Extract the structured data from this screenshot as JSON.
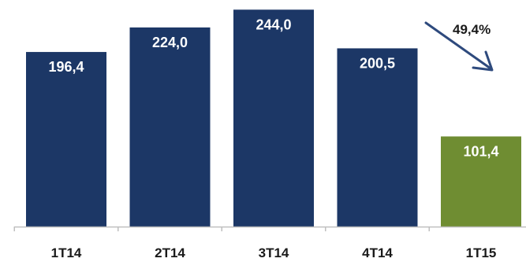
{
  "chart_data": {
    "type": "bar",
    "categories": [
      "1T14",
      "2T14",
      "3T14",
      "4T14",
      "1T15"
    ],
    "values": [
      196.4,
      224.0,
      244.0,
      200.5,
      101.4
    ],
    "value_labels": [
      "196,4",
      "224,0",
      "244,0",
      "200,5",
      "101,4"
    ],
    "ylim": [
      0,
      250
    ],
    "grid": false,
    "legend": "none",
    "colors": [
      "#1c3766",
      "#1c3766",
      "#1c3766",
      "#1c3766",
      "#6f8d32"
    ],
    "annotation": {
      "text": "49,4%",
      "type": "decrease-arrow"
    },
    "axis_color": "#bfbfbf",
    "arrow_color": "#2e4a7d"
  }
}
